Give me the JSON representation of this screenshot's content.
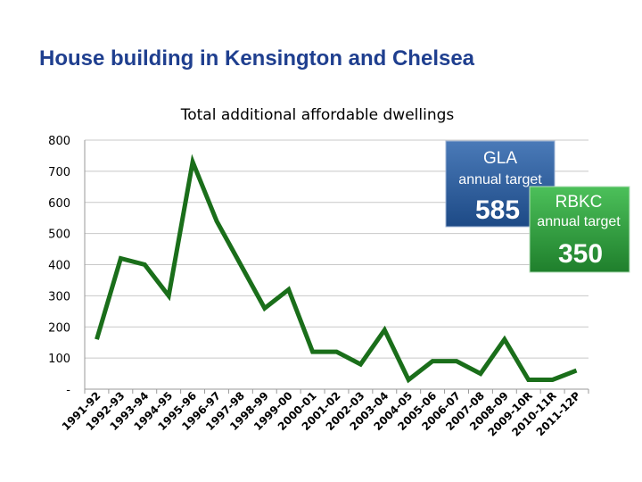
{
  "slide": {
    "title": "House building in Kensington and Chelsea"
  },
  "chart_data": {
    "type": "line",
    "title": "Total additional affordable dwellings",
    "xlabel": "",
    "ylabel": "",
    "ylim": [
      0,
      800
    ],
    "y_ticks": [
      "-",
      "100",
      "200",
      "300",
      "400",
      "500",
      "600",
      "700",
      "800"
    ],
    "grid": true,
    "categories": [
      "1991-92",
      "1992-93",
      "1993-94",
      "1994-95",
      "1995-96",
      "1996-97",
      "1997-98",
      "1998-99",
      "1999-00",
      "2000-01",
      "2001-02",
      "2002-03",
      "2003-04",
      "2004-05",
      "2005-06",
      "2006-07",
      "2007-08",
      "2008-09",
      "2009-10R",
      "2010-11R",
      "2011-12P"
    ],
    "series": [
      {
        "values": [
          160,
          420,
          400,
          300,
          730,
          540,
          400,
          260,
          320,
          120,
          120,
          80,
          190,
          30,
          90,
          90,
          50,
          160,
          30,
          30,
          60
        ],
        "color": "#1a6e1a"
      }
    ],
    "annotations": {
      "gla": {
        "title": "GLA",
        "subtitle": "annual target",
        "value": "585",
        "color": "#2a5a9c"
      },
      "rbkc": {
        "title": "RBKC",
        "subtitle": "annual target",
        "value": "350",
        "color": "#2e9e3e"
      }
    }
  }
}
